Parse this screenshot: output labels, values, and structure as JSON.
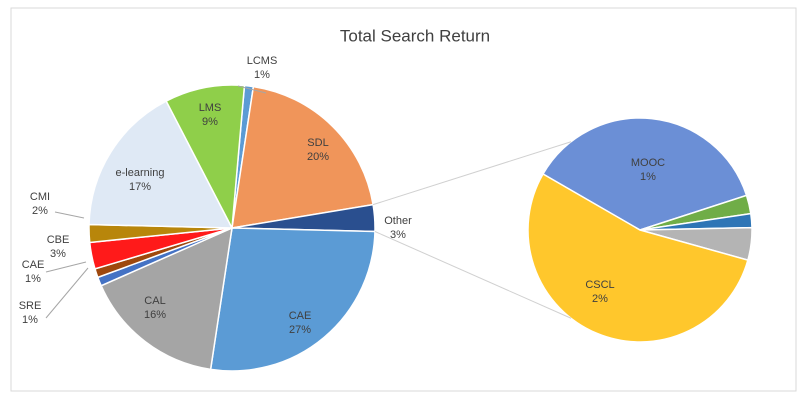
{
  "chart_data": [
    {
      "type": "pie",
      "title": "Total Search Return",
      "categories": [
        "LCMS",
        "SDL",
        "Other",
        "CAE",
        "CAL",
        "SRE",
        "CAE",
        "CBE",
        "CMI",
        "e-learning",
        "LMS"
      ],
      "values": [
        1,
        20,
        3,
        27,
        16,
        1,
        1,
        3,
        2,
        17,
        9
      ],
      "value_labels": [
        "1%",
        "20%",
        "3%",
        "27%",
        "16%",
        "1%",
        "1%",
        "3%",
        "2%",
        "17%",
        "9%"
      ],
      "colors": [
        "#5b9bd5",
        "#f0955a",
        "#2a4f8f",
        "#5b9bd5",
        "#a5a5a5",
        "#4472c4",
        "#9e480e",
        "#ff1a1a",
        "#b8860b",
        "#dfe9f5",
        "#8fcf4a"
      ]
    },
    {
      "type": "pie",
      "categories": [
        "MOOC",
        null,
        null,
        null,
        "CSCL"
      ],
      "values": [
        1.1,
        0.08,
        0.06,
        0.14,
        1.62
      ],
      "value_labels": [
        "1%",
        null,
        null,
        null,
        "2%"
      ],
      "colors": [
        "#6b8fd6",
        "#70ad47",
        "#2e75b6",
        "#b4b4b4",
        "#ffc72c"
      ]
    }
  ]
}
